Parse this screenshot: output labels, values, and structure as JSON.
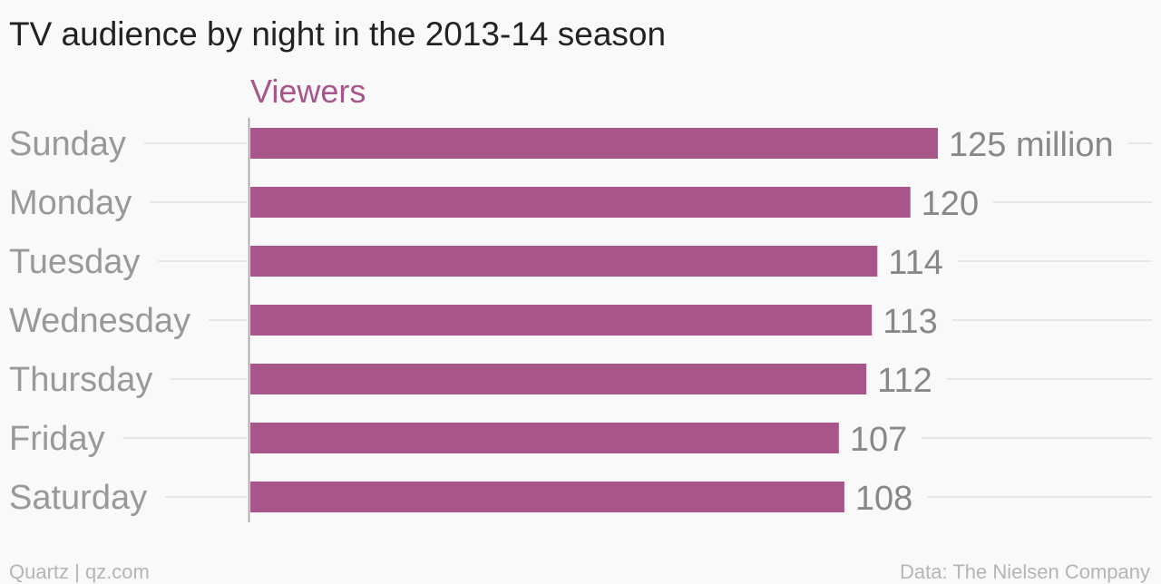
{
  "chart_data": {
    "type": "bar",
    "orientation": "horizontal",
    "title": "TV audience by night in the 2013-14 season",
    "series_label": "Viewers",
    "categories": [
      "Sunday",
      "Monday",
      "Tuesday",
      "Wednesday",
      "Thursday",
      "Friday",
      "Saturday"
    ],
    "values": [
      125,
      120,
      114,
      113,
      112,
      107,
      108
    ],
    "value_labels": [
      "125 million",
      "120",
      "114",
      "113",
      "112",
      "107",
      "108"
    ],
    "xlim": [
      0,
      125
    ],
    "grid": true,
    "bar_color": "#a8558a"
  },
  "footer": {
    "source_left": "Quartz | qz.com",
    "source_right": "Data: The Nielsen Company"
  }
}
